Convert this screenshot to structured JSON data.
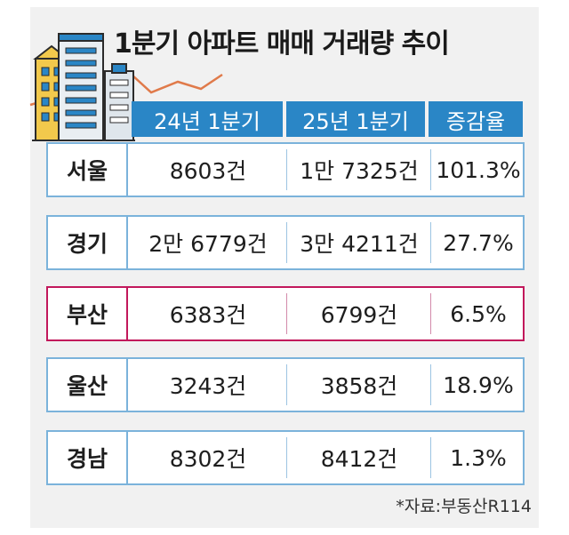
{
  "title": "1분기 아파트 매매 거래량 추이",
  "columns": [
    "24년 1분기",
    "25년 1분기",
    "증감율"
  ],
  "rows": [
    {
      "region": "서울",
      "q1_24": "8603건",
      "q1_25": "1만 7325건",
      "change": "101.3%"
    },
    {
      "region": "경기",
      "q1_24": "2만 6779건",
      "q1_25": "3만 4211건",
      "change": "27.7%"
    },
    {
      "region": "부산",
      "q1_24": "6383건",
      "q1_25": "6799건",
      "change": "6.5%"
    },
    {
      "region": "울산",
      "q1_24": "3243건",
      "q1_25": "3858건",
      "change": "18.9%"
    },
    {
      "region": "경남",
      "q1_24": "8302건",
      "q1_25": "8412건",
      "change": "1.3%"
    }
  ],
  "source": "*자료:부동산R114",
  "highlight_row": "부산",
  "colors": {
    "header": "#2a86c6",
    "row_border": "#7bb3db",
    "highlight_border": "#c2185b",
    "trend_line": "#e07a4a"
  },
  "chart_data": {
    "type": "table",
    "title": "1분기 아파트 매매 거래량 추이",
    "columns": [
      "",
      "24년 1분기",
      "25년 1분기",
      "증감율"
    ],
    "rows": [
      [
        "서울",
        "8603건",
        "1만 7325건",
        "101.3%"
      ],
      [
        "경기",
        "2만 6779건",
        "3만 4211건",
        "27.7%"
      ],
      [
        "부산",
        "6383건",
        "6799건",
        "6.5%"
      ],
      [
        "울산",
        "3243건",
        "3858건",
        "18.9%"
      ],
      [
        "경남",
        "8302건",
        "8412건",
        "1.3%"
      ]
    ],
    "values_24q1": [
      8603,
      26779,
      6383,
      3243,
      8302
    ],
    "values_25q1": [
      17325,
      34211,
      6799,
      3858,
      8412
    ],
    "change_pct": [
      101.3,
      27.7,
      6.5,
      18.9,
      1.3
    ]
  }
}
